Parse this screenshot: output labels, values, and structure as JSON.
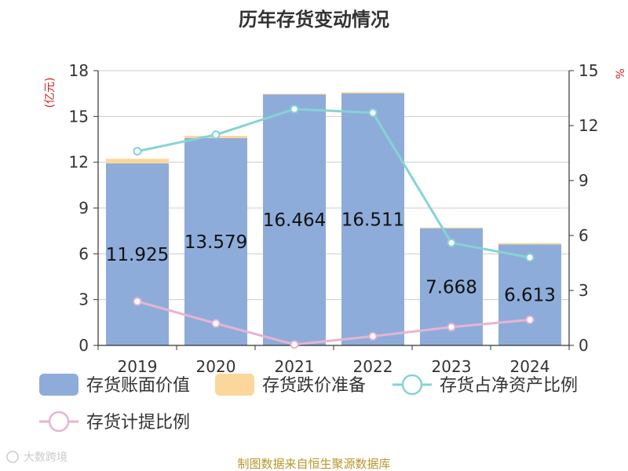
{
  "chart_data": {
    "type": "bar",
    "title": "历年存货变动情况",
    "categories": [
      "2019",
      "2020",
      "2021",
      "2022",
      "2023",
      "2024"
    ],
    "left_axis": {
      "unit": "(亿元)",
      "ylim": [
        0,
        18
      ],
      "ticks": [
        "0",
        "3",
        "6",
        "9",
        "12",
        "15",
        "18"
      ]
    },
    "right_axis": {
      "unit": "%",
      "ylim": [
        0,
        15
      ],
      "ticks": [
        "0",
        "3",
        "6",
        "9",
        "12",
        "15"
      ]
    },
    "series": [
      {
        "name": "存货账面价值",
        "type": "bar",
        "axis": "left",
        "color": "#8eacd9",
        "values": [
          11.925,
          13.579,
          16.464,
          16.511,
          7.668,
          6.613
        ],
        "labels": [
          "11.925",
          "13.579",
          "16.464",
          "16.511",
          "7.668",
          "6.613"
        ]
      },
      {
        "name": "存货跌价准备",
        "type": "bar",
        "axis": "left",
        "stacked": true,
        "color": "#fbd79b",
        "values": [
          0.3,
          0.15,
          0.02,
          0.08,
          0.06,
          0.09
        ]
      },
      {
        "name": "存货占净资产比例",
        "type": "line",
        "axis": "right",
        "color": "#86d3d3",
        "values": [
          10.6,
          11.5,
          12.9,
          12.7,
          5.6,
          4.8
        ]
      },
      {
        "name": "存货计提比例",
        "type": "line",
        "axis": "right",
        "color": "#e6b4d2",
        "values": [
          2.4,
          1.2,
          0.05,
          0.5,
          1.0,
          1.4
        ]
      }
    ],
    "grid": true
  },
  "footer": {
    "source": "制图数据来自恒生聚源数据库",
    "watermark": "大数跨境"
  }
}
